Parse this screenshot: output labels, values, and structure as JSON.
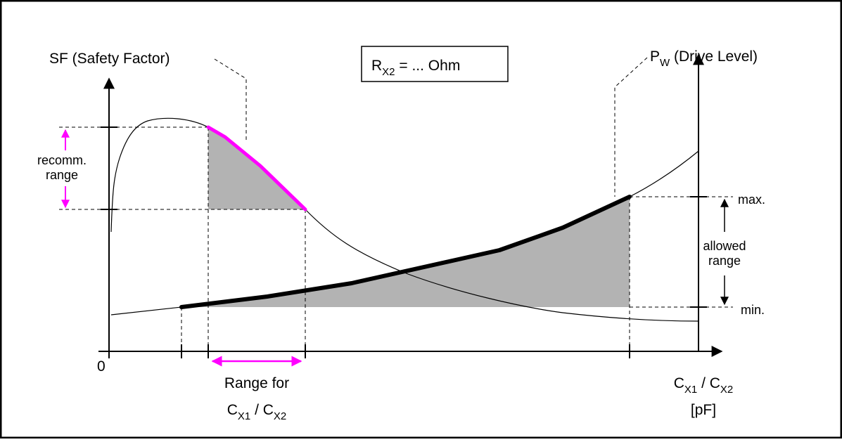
{
  "labels": {
    "sf_main": "SF (Safety Factor)",
    "pw_main": "P",
    "pw_sub": "W",
    "pw_rest": " (Drive Level)",
    "rx2_main": "R",
    "rx2_sub": "X2",
    "rx2_rest": " = ... Ohm",
    "recomm_line1": "recomm.",
    "recomm_line2": "range",
    "allowed_line1": "allowed",
    "allowed_line2": "range",
    "max": "max.",
    "min": "min.",
    "origin": "0",
    "range_for": "Range for",
    "cx1_a": "C",
    "cx1_a_sub": "X1",
    "cx2_a_sep": " / C",
    "cx2_a_sub": "X2",
    "cx1_b": "C",
    "cx1_b_sub": "X1",
    "cx2_b_sep": " / C",
    "cx2_b_sub": "X2",
    "unit": "[pF]"
  },
  "colors": {
    "highlight": "#ff00ff",
    "shade": "#b3b3b3",
    "line": "#000000"
  }
}
